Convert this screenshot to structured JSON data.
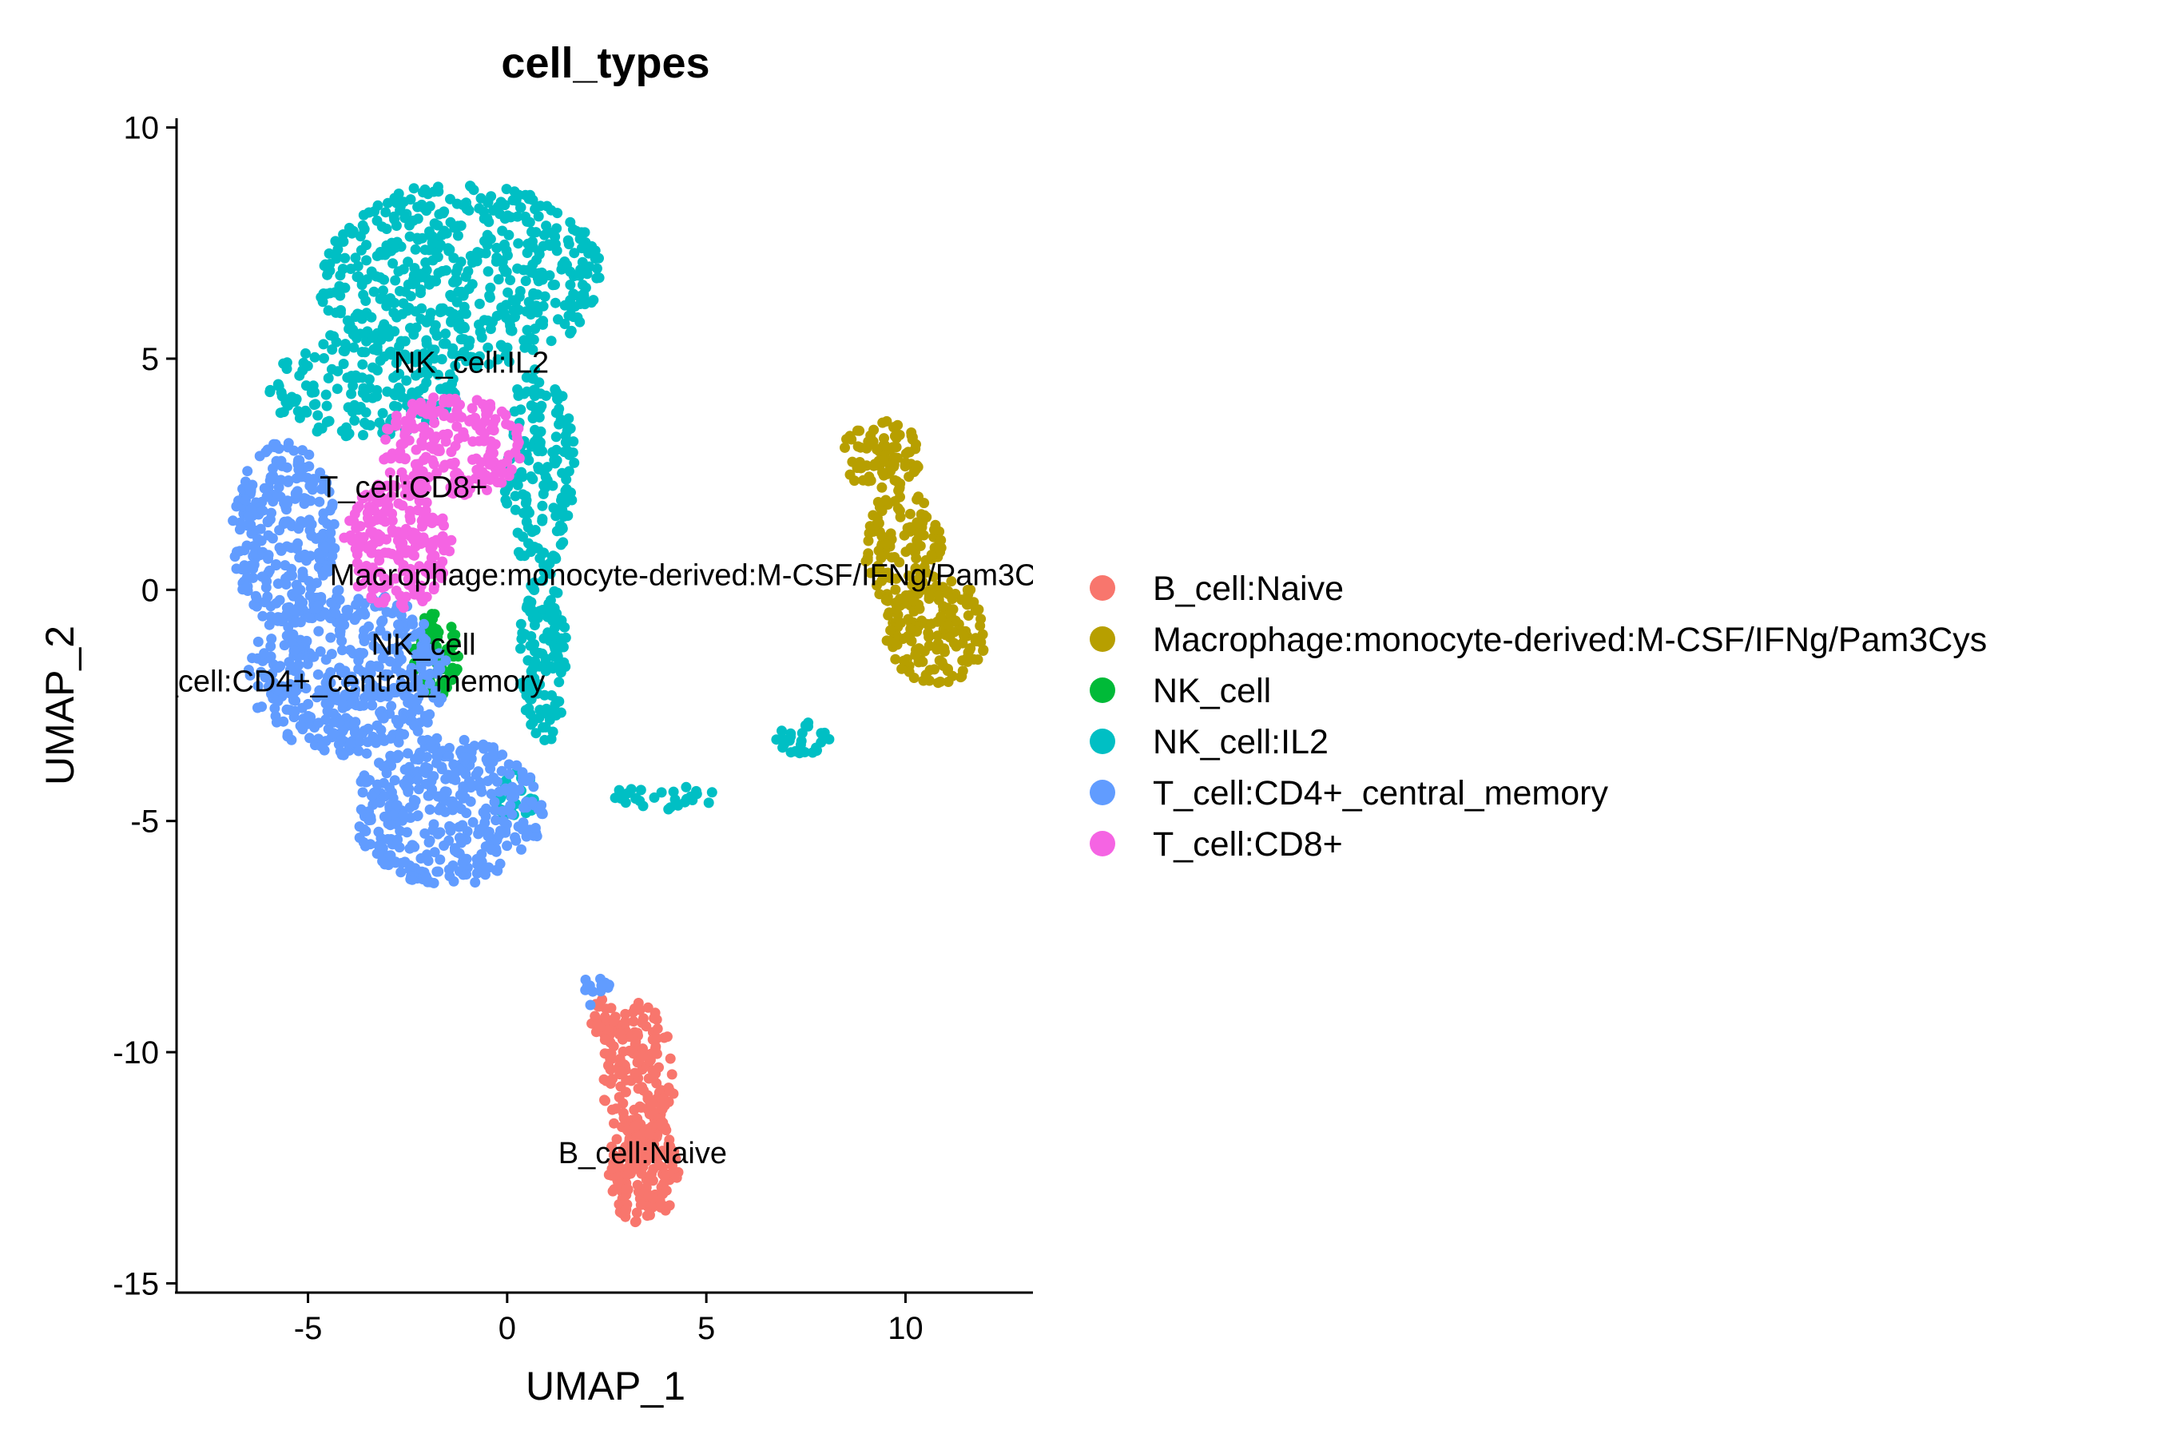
{
  "chart_data": {
    "type": "scatter",
    "title": "cell_types",
    "xlabel": "UMAP_1",
    "ylabel": "UMAP_2",
    "xlim": [
      -8.3,
      13.2
    ],
    "ylim": [
      -15.2,
      10.2
    ],
    "xticks": [
      -5,
      0,
      5,
      10
    ],
    "yticks": [
      10,
      5,
      0,
      -5,
      -10,
      -15
    ],
    "xtick_labels": [
      "-5",
      "0",
      "5",
      "10"
    ],
    "ytick_labels": [
      "10",
      "5",
      "0",
      "-5",
      "-10",
      "-15"
    ],
    "grid": false,
    "legend_position": "right",
    "series": [
      {
        "name": "B_cell:Naive",
        "color": "#F8766D",
        "label": {
          "text": "B_cell:Naive",
          "x": 3.4,
          "y": -12.4
        },
        "regions": [
          {
            "cx": 3.3,
            "cy": -10.6,
            "rx": 0.9,
            "ry": 1.8,
            "n": 180
          },
          {
            "cx": 3.4,
            "cy": -12.6,
            "rx": 0.9,
            "ry": 1.1,
            "n": 150
          },
          {
            "cx": 2.4,
            "cy": -9.3,
            "rx": 0.3,
            "ry": 0.5,
            "n": 25
          }
        ]
      },
      {
        "name": "Macrophage:monocyte-derived:M-CSF/IFNg/Pam3Cys",
        "color": "#B79F00",
        "label": {
          "text": "Macrophage:monocyte-derived:M-CSF/IFNg/Pam3Cys",
          "x": 4.8,
          "y": 0.1
        },
        "regions": [
          {
            "cx": 9.4,
            "cy": 2.9,
            "rx": 1.0,
            "ry": 0.8,
            "n": 90
          },
          {
            "cx": 9.9,
            "cy": 0.9,
            "rx": 1.0,
            "ry": 1.3,
            "n": 120
          },
          {
            "cx": 10.8,
            "cy": -0.9,
            "rx": 1.3,
            "ry": 1.2,
            "n": 160
          }
        ]
      },
      {
        "name": "NK_cell",
        "color": "#00BA38",
        "label": {
          "text": "NK_cell",
          "x": -2.1,
          "y": -1.4
        },
        "regions": [
          {
            "cx": -1.8,
            "cy": -1.4,
            "rx": 0.6,
            "ry": 0.9,
            "n": 70
          }
        ]
      },
      {
        "name": "NK_cell:IL2",
        "color": "#00BFC4",
        "label": {
          "text": "NK_cell:IL2",
          "x": -0.9,
          "y": 4.7
        },
        "regions": [
          {
            "cx": -1.2,
            "cy": 6.8,
            "rx": 3.6,
            "ry": 2.0,
            "n": 520
          },
          {
            "cx": -3.6,
            "cy": 4.4,
            "rx": 2.4,
            "ry": 1.2,
            "n": 180
          },
          {
            "cx": 0.8,
            "cy": 2.6,
            "rx": 0.9,
            "ry": 2.2,
            "n": 170
          },
          {
            "cx": 0.9,
            "cy": -1.5,
            "rx": 0.6,
            "ry": 2.0,
            "n": 120
          },
          {
            "cx": 0.2,
            "cy": -4.5,
            "rx": 0.5,
            "ry": 0.6,
            "n": 30
          },
          {
            "cx": 7.4,
            "cy": -3.2,
            "rx": 0.7,
            "ry": 0.35,
            "n": 30
          },
          {
            "cx": 4.0,
            "cy": -4.5,
            "rx": 1.6,
            "ry": 0.25,
            "n": 30
          }
        ]
      },
      {
        "name": "T_cell:CD4+_central_memory",
        "color": "#619CFF",
        "label": {
          "text": "T_cell:CD4+_central_memory",
          "x": -4.1,
          "y": -2.2
        },
        "regions": [
          {
            "cx": -5.6,
            "cy": 1.2,
            "rx": 1.3,
            "ry": 2.0,
            "n": 260
          },
          {
            "cx": -4.0,
            "cy": -1.8,
            "rx": 2.5,
            "ry": 1.8,
            "n": 420
          },
          {
            "cx": -1.5,
            "cy": -4.8,
            "rx": 2.4,
            "ry": 1.6,
            "n": 380
          },
          {
            "cx": 2.3,
            "cy": -8.7,
            "rx": 0.4,
            "ry": 0.5,
            "n": 12
          }
        ]
      },
      {
        "name": "T_cell:CD8+",
        "color": "#F564E3",
        "label": {
          "text": "T_cell:CD8+",
          "x": -2.6,
          "y": 2.0
        },
        "regions": [
          {
            "cx": -1.4,
            "cy": 3.1,
            "rx": 1.8,
            "ry": 1.1,
            "n": 200
          },
          {
            "cx": -2.7,
            "cy": 1.0,
            "rx": 1.4,
            "ry": 1.4,
            "n": 210
          }
        ]
      }
    ]
  }
}
